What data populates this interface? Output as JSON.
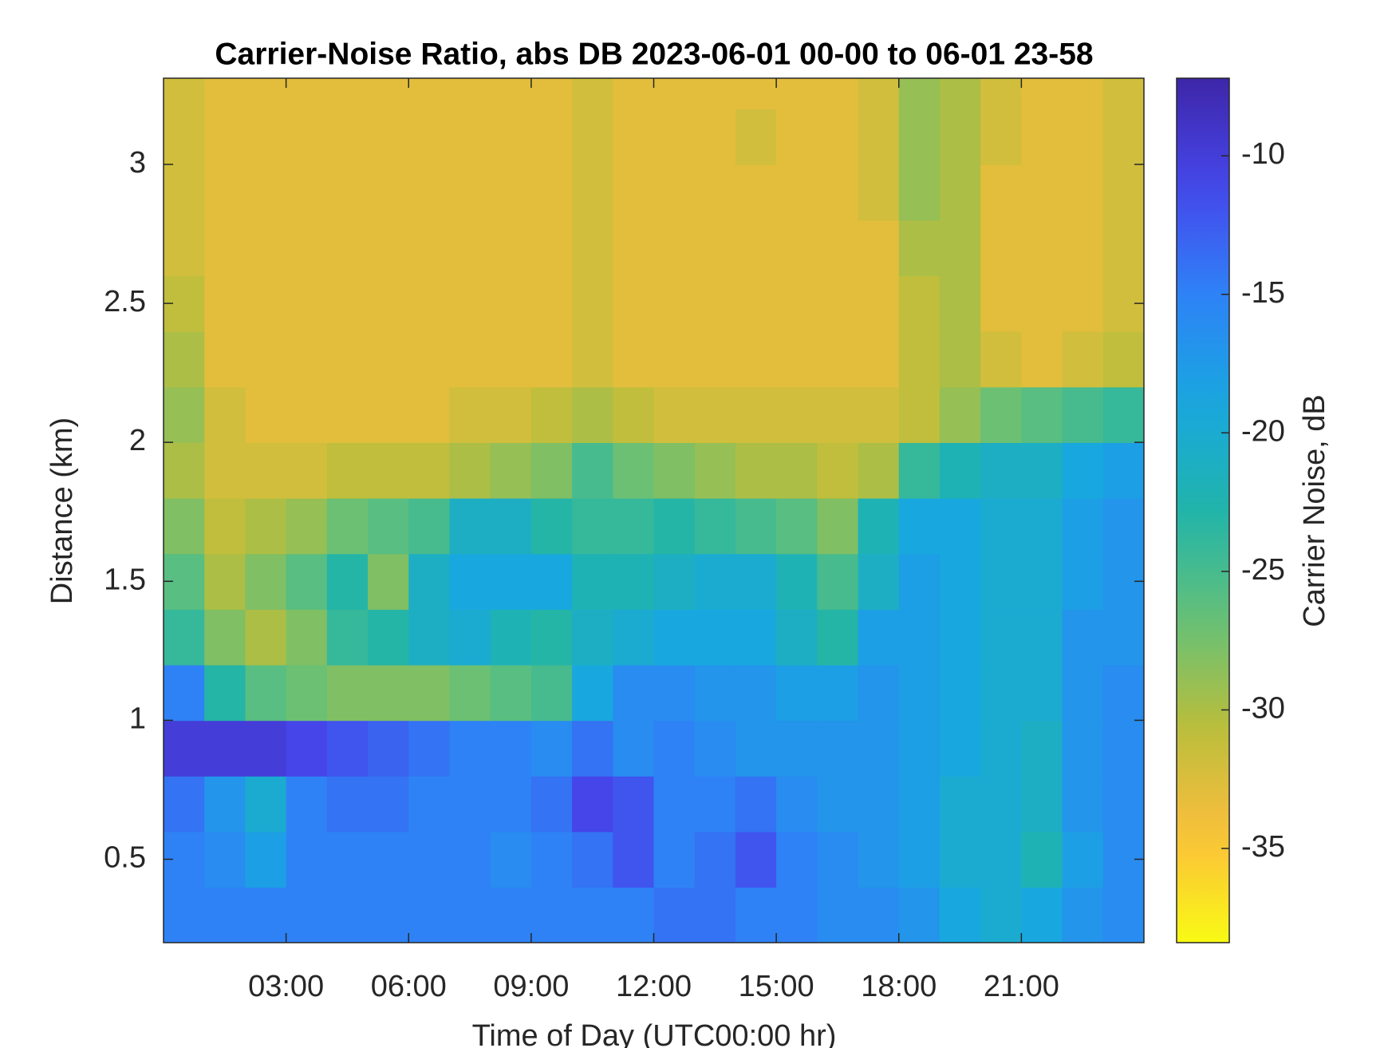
{
  "chart_data": {
    "type": "heatmap",
    "title": "Carrier-Noise Ratio, abs DB 2023-06-01 00-00 to 06-01 23-58",
    "x_label": "Time of Day (UTC00:00 hr)",
    "y_label": "Distance (km)",
    "colorbar_label": "Carrier Noise, dB",
    "colormap": "parula",
    "colormap_reversed": true,
    "xlim": [
      0,
      24
    ],
    "ylim": [
      0.2,
      3.31
    ],
    "clim": [
      -38.4,
      -7.2
    ],
    "xticks": [
      {
        "value": 3,
        "label": "03:00"
      },
      {
        "value": 6,
        "label": "06:00"
      },
      {
        "value": 9,
        "label": "09:00"
      },
      {
        "value": 12,
        "label": "12:00"
      },
      {
        "value": 15,
        "label": "15:00"
      },
      {
        "value": 18,
        "label": "18:00"
      },
      {
        "value": 21,
        "label": "21:00"
      }
    ],
    "yticks": [
      0.5,
      1,
      1.5,
      2,
      2.5,
      3
    ],
    "cticks": [
      -35,
      -30,
      -25,
      -20,
      -15,
      -10
    ],
    "x": [
      0.5,
      1.5,
      2.5,
      3.5,
      4.5,
      5.5,
      6.5,
      7.5,
      8.5,
      9.5,
      10.5,
      11.5,
      12.5,
      13.5,
      14.5,
      15.5,
      16.5,
      17.5,
      18.5,
      19.5,
      20.5,
      21.5,
      22.5,
      23.5
    ],
    "y": [
      0.3,
      0.5,
      0.7,
      0.9,
      1.1,
      1.3,
      1.5,
      1.7,
      1.9,
      2.1,
      2.3,
      2.5,
      2.7,
      2.9,
      3.1,
      3.3
    ],
    "values": [
      [
        -15,
        -15,
        -15,
        -15,
        -15,
        -15,
        -15,
        -15,
        -15,
        -15,
        -15,
        -15,
        -14,
        -14,
        -15,
        -15,
        -16,
        -16,
        -17,
        -19,
        -20,
        -19,
        -17,
        -16
      ],
      [
        -15,
        -16,
        -18,
        -15,
        -15,
        -15,
        -15,
        -15,
        -16,
        -15,
        -14,
        -12,
        -15,
        -14,
        -12,
        -15,
        -16,
        -17,
        -18,
        -20,
        -20,
        -22,
        -18,
        -16
      ],
      [
        -14,
        -17,
        -20,
        -15,
        -14,
        -14,
        -15,
        -15,
        -15,
        -14,
        -11,
        -12,
        -15,
        -15,
        -14,
        -16,
        -17,
        -17,
        -18,
        -20,
        -20,
        -21,
        -17,
        -16
      ],
      [
        -10,
        -10,
        -10,
        -11,
        -12,
        -13,
        -14,
        -15,
        -15,
        -16,
        -14,
        -16,
        -15,
        -16,
        -17,
        -17,
        -17,
        -17,
        -18,
        -19,
        -20,
        -21,
        -17,
        -16
      ],
      [
        -15,
        -23,
        -26,
        -27,
        -28,
        -28,
        -28,
        -27,
        -26,
        -25,
        -19,
        -16,
        -16,
        -17,
        -17,
        -18,
        -18,
        -17,
        -18,
        -19,
        -20,
        -20,
        -17,
        -16
      ],
      [
        -24,
        -28,
        -30,
        -28,
        -24,
        -23,
        -21,
        -20,
        -22,
        -23,
        -21,
        -20,
        -19,
        -19,
        -19,
        -21,
        -23,
        -18,
        -18,
        -19,
        -20,
        -20,
        -17,
        -17
      ],
      [
        -26,
        -30,
        -28,
        -26,
        -23,
        -28,
        -21,
        -19,
        -19,
        -19,
        -22,
        -22,
        -21,
        -20,
        -20,
        -22,
        -25,
        -21,
        -18,
        -19,
        -20,
        -20,
        -18,
        -17
      ],
      [
        -28,
        -31,
        -30,
        -29,
        -27,
        -26,
        -25,
        -21,
        -21,
        -23,
        -24,
        -24,
        -23,
        -24,
        -25,
        -26,
        -28,
        -22,
        -19,
        -19,
        -20,
        -20,
        -18,
        -17
      ],
      [
        -30,
        -32,
        -32,
        -32,
        -31,
        -31,
        -31,
        -30,
        -29,
        -28,
        -25,
        -27,
        -28,
        -29,
        -30,
        -30,
        -31,
        -30,
        -24,
        -22,
        -21,
        -21,
        -19,
        -18
      ],
      [
        -29,
        -32,
        -33,
        -33,
        -33,
        -33,
        -33,
        -32,
        -32,
        -31,
        -30,
        -31,
        -32,
        -32,
        -32,
        -32,
        -32,
        -32,
        -31,
        -29,
        -27,
        -26,
        -25,
        -24
      ],
      [
        -30,
        -33,
        -33,
        -33,
        -33,
        -33,
        -33,
        -33,
        -33,
        -33,
        -32,
        -33,
        -33,
        -33,
        -33,
        -33,
        -33,
        -33,
        -31,
        -30,
        -32,
        -33,
        -32,
        -31
      ],
      [
        -31,
        -33,
        -33,
        -33,
        -33,
        -33,
        -33,
        -33,
        -33,
        -33,
        -32,
        -33,
        -33,
        -33,
        -33,
        -33,
        -33,
        -33,
        -31,
        -30,
        -33,
        -33,
        -33,
        -32
      ],
      [
        -32,
        -33,
        -33,
        -33,
        -33,
        -33,
        -33,
        -33,
        -33,
        -33,
        -32,
        -33,
        -33,
        -33,
        -33,
        -33,
        -33,
        -33,
        -30,
        -30,
        -33,
        -33,
        -33,
        -32
      ],
      [
        -32,
        -33,
        -33,
        -33,
        -33,
        -33,
        -33,
        -33,
        -33,
        -33,
        -32,
        -33,
        -33,
        -33,
        -33,
        -33,
        -33,
        -32,
        -29,
        -30,
        -33,
        -33,
        -33,
        -32
      ],
      [
        -32,
        -33,
        -33,
        -33,
        -33,
        -33,
        -33,
        -33,
        -33,
        -33,
        -32,
        -33,
        -33,
        -33,
        -32,
        -33,
        -33,
        -32,
        -29,
        -30,
        -32,
        -33,
        -33,
        -32
      ],
      [
        -32,
        -33,
        -33,
        -33,
        -33,
        -33,
        -33,
        -33,
        -33,
        -33,
        -32,
        -33,
        -33,
        -33,
        -33,
        -33,
        -33,
        -32,
        -29,
        -30,
        -32,
        -33,
        -33,
        -32
      ]
    ]
  }
}
